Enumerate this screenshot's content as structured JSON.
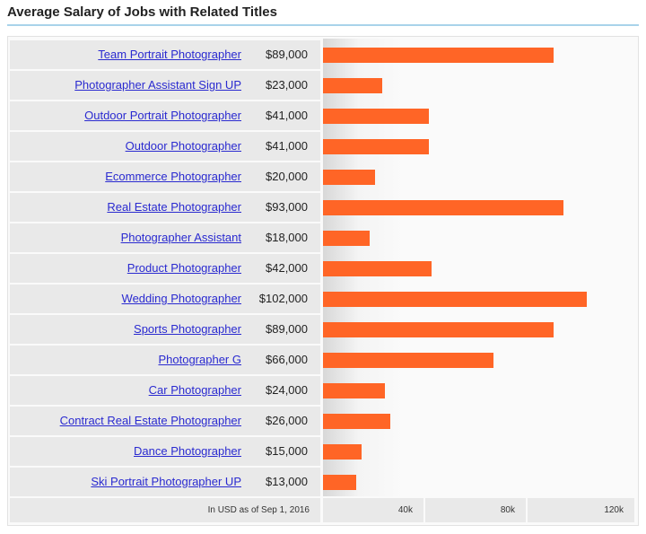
{
  "title": "Average Salary of Jobs with Related Titles",
  "chart_data": {
    "type": "bar",
    "orientation": "horizontal",
    "categories": [
      "Team Portrait Photographer",
      "Photographer Assistant Sign UP",
      "Outdoor Portrait Photographer",
      "Outdoor Photographer",
      "Ecommerce Photographer",
      "Real Estate Photographer",
      "Photographer Assistant",
      "Product Photographer",
      "Wedding Photographer",
      "Sports Photographer",
      "Photographer G",
      "Car Photographer",
      "Contract Real Estate Photographer",
      "Dance Photographer",
      "Ski Portrait Photographer UP"
    ],
    "values": [
      89000,
      23000,
      41000,
      41000,
      20000,
      93000,
      18000,
      42000,
      102000,
      89000,
      66000,
      24000,
      26000,
      15000,
      13000
    ],
    "value_labels": [
      "$89,000",
      "$23,000",
      "$41,000",
      "$41,000",
      "$20,000",
      "$93,000",
      "$18,000",
      "$42,000",
      "$102,000",
      "$89,000",
      "$66,000",
      "$24,000",
      "$26,000",
      "$15,000",
      "$13,000"
    ],
    "xlim": [
      0,
      120000
    ],
    "tick_labels": [
      "40k",
      "80k",
      "120k"
    ],
    "footnote": "In USD as of Sep 1, 2016",
    "bar_color": "#ff6526",
    "link_color": "#2a2ad0"
  }
}
